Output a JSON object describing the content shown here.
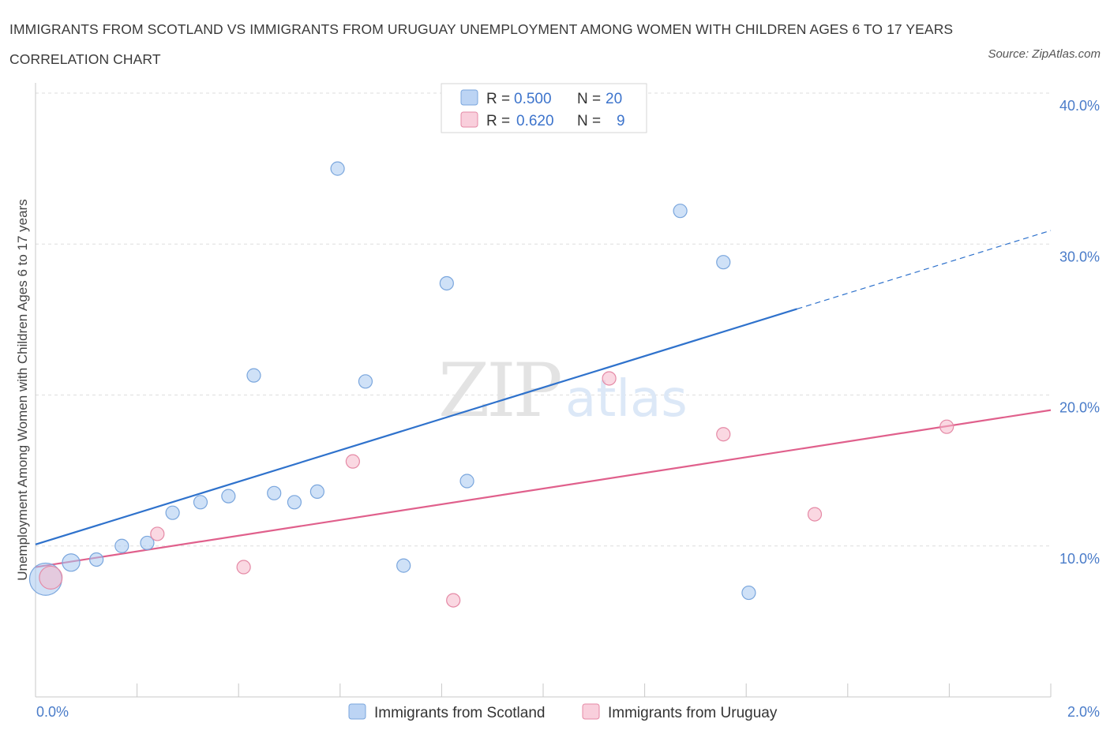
{
  "chart_data": {
    "type": "scatter",
    "title": "IMMIGRANTS FROM SCOTLAND VS IMMIGRANTS FROM URUGUAY UNEMPLOYMENT AMONG WOMEN WITH CHILDREN AGES 6 TO 17 YEARS CORRELATION CHART",
    "source": "Source: ZipAtlas.com",
    "ylabel": "Unemployment Among Women with Children Ages 6 to 17 years",
    "xlim": [
      0,
      2.0
    ],
    "ylim": [
      0,
      40.0
    ],
    "y_ticks": [
      {
        "value": 10,
        "label": "10.0%"
      },
      {
        "value": 20,
        "label": "20.0%"
      },
      {
        "value": 30,
        "label": "30.0%"
      },
      {
        "value": 40,
        "label": "40.0%"
      }
    ],
    "x_tick_labels": {
      "left": "0.0%",
      "right": "2.0%"
    },
    "watermark": {
      "zip": "ZIP",
      "atlas": "atlas"
    },
    "series": [
      {
        "name": "Immigrants from Scotland",
        "color": "#a8c8f0",
        "stroke": "#7aa6dd",
        "line_color": "#2f72cc",
        "R": "0.500",
        "N": "20",
        "points": [
          {
            "x": 0.02,
            "y": 7.8,
            "size": 2.4
          },
          {
            "x": 0.07,
            "y": 8.9,
            "size": 1.3
          },
          {
            "x": 0.12,
            "y": 9.1,
            "size": 1
          },
          {
            "x": 0.17,
            "y": 10.0,
            "size": 1
          },
          {
            "x": 0.22,
            "y": 10.2,
            "size": 1
          },
          {
            "x": 0.27,
            "y": 12.2,
            "size": 1
          },
          {
            "x": 0.325,
            "y": 12.9,
            "size": 1
          },
          {
            "x": 0.38,
            "y": 13.3,
            "size": 1
          },
          {
            "x": 0.43,
            "y": 21.3,
            "size": 1
          },
          {
            "x": 0.47,
            "y": 13.5,
            "size": 1
          },
          {
            "x": 0.51,
            "y": 12.9,
            "size": 1
          },
          {
            "x": 0.555,
            "y": 13.6,
            "size": 1
          },
          {
            "x": 0.595,
            "y": 35.0,
            "size": 1
          },
          {
            "x": 0.65,
            "y": 20.9,
            "size": 1
          },
          {
            "x": 0.725,
            "y": 8.7,
            "size": 1
          },
          {
            "x": 0.81,
            "y": 27.4,
            "size": 1
          },
          {
            "x": 0.85,
            "y": 14.3,
            "size": 1
          },
          {
            "x": 1.27,
            "y": 32.2,
            "size": 1
          },
          {
            "x": 1.355,
            "y": 28.8,
            "size": 1
          },
          {
            "x": 1.405,
            "y": 6.9,
            "size": 1
          }
        ],
        "trend": {
          "x0": 0.0,
          "y0": 10.1,
          "x1": 1.5,
          "y1": 25.7,
          "dash_x1": 2.0,
          "dash_y1": 30.9
        }
      },
      {
        "name": "Immigrants from Uruguay",
        "color": "#f5b8cb",
        "stroke": "#e58aa6",
        "line_color": "#e0608c",
        "R": "0.620",
        "N": "9",
        "points": [
          {
            "x": 0.03,
            "y": 7.9,
            "size": 1.7
          },
          {
            "x": 0.24,
            "y": 10.8,
            "size": 1
          },
          {
            "x": 0.41,
            "y": 8.6,
            "size": 1
          },
          {
            "x": 0.625,
            "y": 15.6,
            "size": 1
          },
          {
            "x": 0.823,
            "y": 6.4,
            "size": 1
          },
          {
            "x": 1.13,
            "y": 21.1,
            "size": 1
          },
          {
            "x": 1.355,
            "y": 17.4,
            "size": 1
          },
          {
            "x": 1.535,
            "y": 12.1,
            "size": 1
          },
          {
            "x": 1.795,
            "y": 17.9,
            "size": 1
          }
        ],
        "trend": {
          "x0": 0.0,
          "y0": 8.6,
          "x1": 2.0,
          "y1": 19.0
        }
      }
    ]
  }
}
